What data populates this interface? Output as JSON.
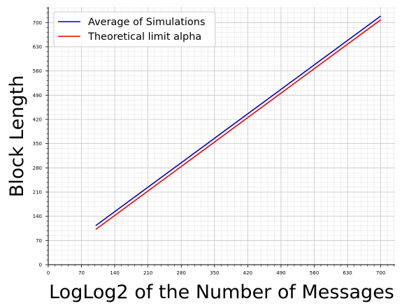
{
  "chart_data": {
    "type": "line",
    "xlabel": "LogLog2 of the Number of Messages",
    "ylabel": "Block Length",
    "xlim": [
      0,
      730
    ],
    "ylim": [
      0,
      745
    ],
    "x_ticks": [
      0,
      70,
      140,
      210,
      280,
      350,
      420,
      490,
      560,
      630,
      700
    ],
    "y_ticks": [
      0,
      70,
      140,
      210,
      280,
      350,
      420,
      490,
      560,
      630,
      700
    ],
    "grid": "major and minor",
    "legend_position": "top-left",
    "series": [
      {
        "name": "Average of Simulations",
        "color": "#0000cc",
        "x": [
          100,
          700
        ],
        "y": [
          113,
          719
        ]
      },
      {
        "name": "Theoretical limit alpha",
        "color": "#ee0000",
        "x": [
          100,
          700
        ],
        "y": [
          102,
          708
        ]
      }
    ]
  }
}
